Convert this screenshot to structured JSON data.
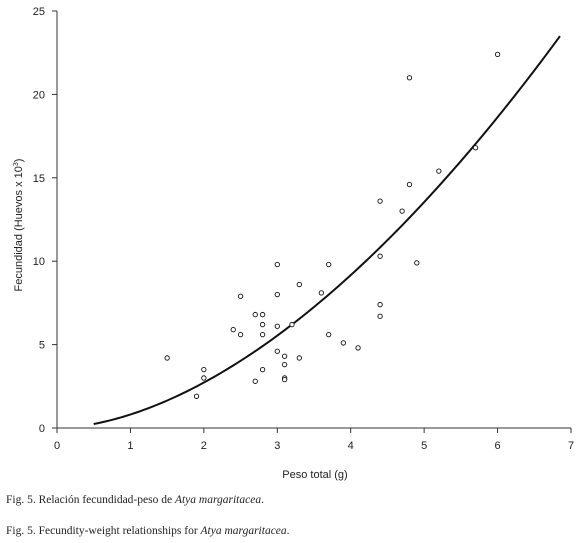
{
  "chart_data": {
    "type": "scatter",
    "xlabel": "Peso total (g)",
    "ylabel_main": "Fecundidad (Huevos x 10",
    "ylabel_sup": "3",
    "ylabel_end": ")",
    "xlim": [
      0,
      7
    ],
    "ylim": [
      0,
      25
    ],
    "x_ticks": [
      0,
      1,
      2,
      3,
      4,
      5,
      6,
      7
    ],
    "y_ticks": [
      0,
      5,
      10,
      15,
      20,
      25
    ],
    "grid": false,
    "points": [
      {
        "x": 1.5,
        "y": 4.2
      },
      {
        "x": 1.9,
        "y": 1.9
      },
      {
        "x": 2.0,
        "y": 3.5
      },
      {
        "x": 2.0,
        "y": 3.0
      },
      {
        "x": 2.4,
        "y": 5.9
      },
      {
        "x": 2.5,
        "y": 7.9
      },
      {
        "x": 2.5,
        "y": 5.6
      },
      {
        "x": 2.7,
        "y": 6.8
      },
      {
        "x": 2.7,
        "y": 2.8
      },
      {
        "x": 2.8,
        "y": 6.8
      },
      {
        "x": 2.8,
        "y": 6.2
      },
      {
        "x": 2.8,
        "y": 5.6
      },
      {
        "x": 2.8,
        "y": 3.5
      },
      {
        "x": 3.0,
        "y": 9.8
      },
      {
        "x": 3.0,
        "y": 8.0
      },
      {
        "x": 3.0,
        "y": 6.1
      },
      {
        "x": 3.0,
        "y": 4.6
      },
      {
        "x": 3.1,
        "y": 4.3
      },
      {
        "x": 3.1,
        "y": 3.8
      },
      {
        "x": 3.1,
        "y": 3.0
      },
      {
        "x": 3.1,
        "y": 2.9
      },
      {
        "x": 3.2,
        "y": 6.2
      },
      {
        "x": 3.3,
        "y": 8.6
      },
      {
        "x": 3.3,
        "y": 4.2
      },
      {
        "x": 3.6,
        "y": 8.1
      },
      {
        "x": 3.7,
        "y": 9.8
      },
      {
        "x": 3.7,
        "y": 5.6
      },
      {
        "x": 3.9,
        "y": 5.1
      },
      {
        "x": 4.1,
        "y": 4.8
      },
      {
        "x": 4.4,
        "y": 13.6
      },
      {
        "x": 4.4,
        "y": 10.3
      },
      {
        "x": 4.4,
        "y": 7.4
      },
      {
        "x": 4.4,
        "y": 6.7
      },
      {
        "x": 4.7,
        "y": 13.0
      },
      {
        "x": 4.8,
        "y": 21.0
      },
      {
        "x": 4.8,
        "y": 14.6
      },
      {
        "x": 4.9,
        "y": 9.9
      },
      {
        "x": 5.2,
        "y": 15.4
      },
      {
        "x": 5.7,
        "y": 16.8
      },
      {
        "x": 6.0,
        "y": 22.4
      }
    ],
    "fit_curve": {
      "type": "power",
      "a": 0.81,
      "b": 1.75,
      "x_range": [
        0.5,
        6.85
      ]
    }
  },
  "captions": {
    "es_prefix": "Fig. 5. Relación fecundidad-peso de ",
    "es_species": "Atya margaritacea",
    "es_suffix": ".",
    "en_prefix": "Fig. 5. Fecundity-weight relationships for ",
    "en_species": "Atya margaritacea",
    "en_suffix": "."
  }
}
